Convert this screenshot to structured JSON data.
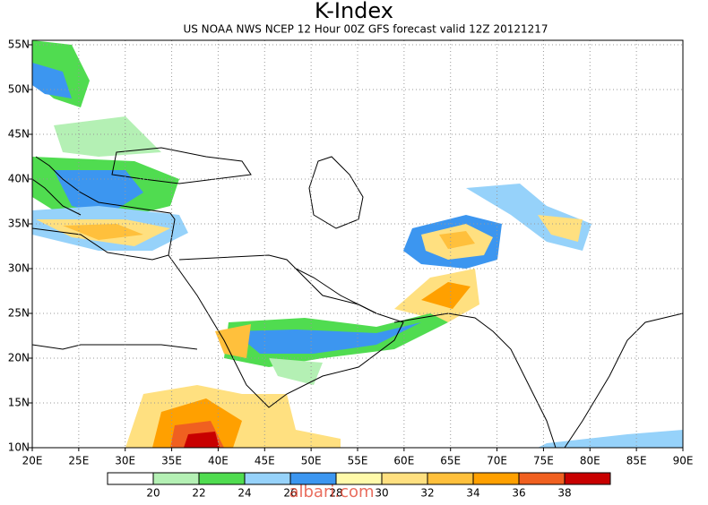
{
  "header": {
    "title": "K-Index",
    "subtitle": "US NOAA NWS NCEP 12 Hour 00Z GFS forecast valid 12Z 20121217"
  },
  "map": {
    "lon_range": [
      20,
      90
    ],
    "lat_range": [
      10,
      55.5
    ],
    "grid": true,
    "lon_ticks": [
      {
        "value": 20,
        "label": "20E"
      },
      {
        "value": 25,
        "label": "25E"
      },
      {
        "value": 30,
        "label": "30E"
      },
      {
        "value": 35,
        "label": "35E"
      },
      {
        "value": 40,
        "label": "40E"
      },
      {
        "value": 45,
        "label": "45E"
      },
      {
        "value": 50,
        "label": "50E"
      },
      {
        "value": 55,
        "label": "55E"
      },
      {
        "value": 60,
        "label": "60E"
      },
      {
        "value": 65,
        "label": "65E"
      },
      {
        "value": 70,
        "label": "70E"
      },
      {
        "value": 75,
        "label": "75E"
      },
      {
        "value": 80,
        "label": "80E"
      },
      {
        "value": 85,
        "label": "85E"
      },
      {
        "value": 90,
        "label": "90E"
      }
    ],
    "lat_ticks": [
      {
        "value": 10,
        "label": "10N"
      },
      {
        "value": 15,
        "label": "15N"
      },
      {
        "value": 20,
        "label": "20N"
      },
      {
        "value": 25,
        "label": "25N"
      },
      {
        "value": 30,
        "label": "30N"
      },
      {
        "value": 35,
        "label": "35N"
      },
      {
        "value": 40,
        "label": "40N"
      },
      {
        "value": 45,
        "label": "45N"
      },
      {
        "value": 50,
        "label": "50N"
      },
      {
        "value": 55,
        "label": "55N"
      }
    ]
  },
  "colorbar": {
    "levels": [
      20,
      22,
      24,
      26,
      28,
      30,
      32,
      34,
      36,
      38
    ],
    "colors": [
      "#ffffff",
      "#b4f0b4",
      "#50dc50",
      "#96d2fa",
      "#3c96f0",
      "#fffaaa",
      "#ffe080",
      "#ffc03c",
      "#ffa000",
      "#f06020",
      "#c80000"
    ]
  },
  "watermark": "albari.com"
}
